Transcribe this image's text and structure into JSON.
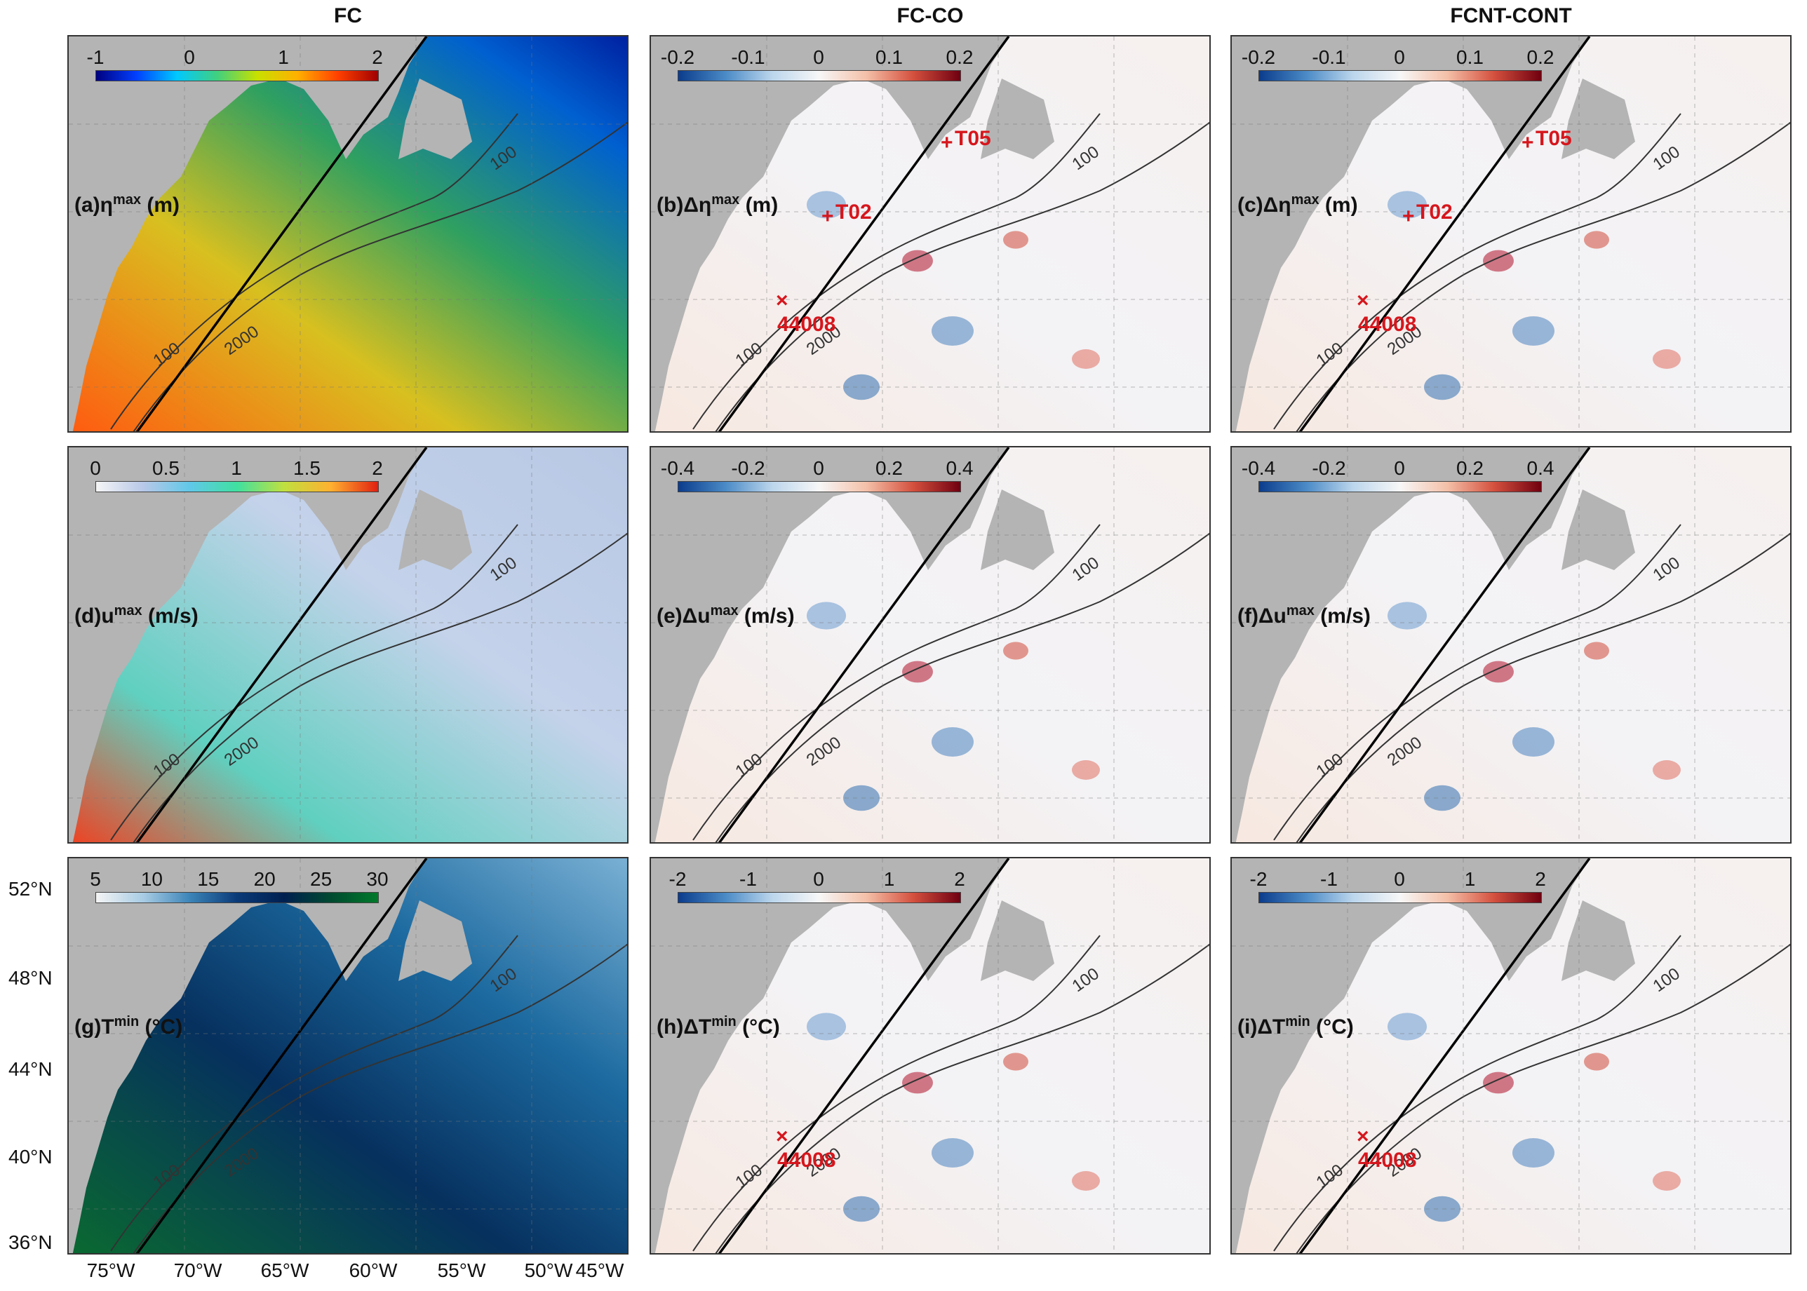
{
  "columns": [
    "FC",
    "FC-CO",
    "FCNT-CONT"
  ],
  "panels": [
    {
      "id": "a",
      "label": "(a)",
      "symbol": "η",
      "sup": "max",
      "unit": "(m)",
      "delta": false,
      "scheme": "jet",
      "ticks": [
        "-1",
        "0",
        "1",
        "2"
      ],
      "stations": []
    },
    {
      "id": "b",
      "label": "(b)",
      "symbol": "Δη",
      "sup": "max",
      "unit": "(m)",
      "delta": true,
      "scheme": "div",
      "ticks": [
        "-0.2",
        "-0.1",
        "0",
        "0.1",
        "0.2"
      ],
      "stations": [
        "T05",
        "T02",
        "44008"
      ]
    },
    {
      "id": "c",
      "label": "(c)",
      "symbol": "Δη",
      "sup": "max",
      "unit": "(m)",
      "delta": true,
      "scheme": "div",
      "ticks": [
        "-0.2",
        "-0.1",
        "0",
        "0.1",
        "0.2"
      ],
      "stations": [
        "T05",
        "T02",
        "44008"
      ]
    },
    {
      "id": "d",
      "label": "(d)",
      "symbol": "u",
      "sup": "max",
      "unit": "(m/s)",
      "delta": false,
      "scheme": "speed",
      "ticks": [
        "0",
        "0.5",
        "1",
        "1.5",
        "2"
      ],
      "stations": []
    },
    {
      "id": "e",
      "label": "(e)",
      "symbol": "Δu",
      "sup": "max",
      "unit": "(m/s)",
      "delta": true,
      "scheme": "div",
      "ticks": [
        "-0.4",
        "-0.2",
        "0",
        "0.2",
        "0.4"
      ],
      "stations": []
    },
    {
      "id": "f",
      "label": "(f)",
      "symbol": "Δu",
      "sup": "max",
      "unit": "(m/s)",
      "delta": true,
      "scheme": "div",
      "ticks": [
        "-0.4",
        "-0.2",
        "0",
        "0.2",
        "0.4"
      ],
      "stations": []
    },
    {
      "id": "g",
      "label": "(g)",
      "symbol": "T",
      "sup": "min",
      "unit": "(°C)",
      "delta": false,
      "scheme": "temp",
      "ticks": [
        "5",
        "10",
        "15",
        "20",
        "25",
        "30"
      ],
      "stations": []
    },
    {
      "id": "h",
      "label": "(h)",
      "symbol": "ΔT",
      "sup": "min",
      "unit": "(°C)",
      "delta": true,
      "scheme": "div",
      "ticks": [
        "-2",
        "-1",
        "0",
        "1",
        "2"
      ],
      "stations": [
        "44008"
      ]
    },
    {
      "id": "i",
      "label": "(i)",
      "symbol": "ΔT",
      "sup": "min",
      "unit": "(°C)",
      "delta": true,
      "scheme": "div",
      "ticks": [
        "-2",
        "-1",
        "0",
        "1",
        "2"
      ],
      "stations": [
        "44008"
      ]
    }
  ],
  "contour_labels": [
    "100",
    "2000"
  ],
  "lat_labels": [
    "52°N",
    "48°N",
    "44°N",
    "40°N",
    "36°N"
  ],
  "lon_labels": [
    "75°W",
    "70°W",
    "65°W",
    "60°W",
    "55°W",
    "50°W",
    "45°W"
  ],
  "colors": {
    "land": "#b4b4b4",
    "station": "#d6161d"
  }
}
